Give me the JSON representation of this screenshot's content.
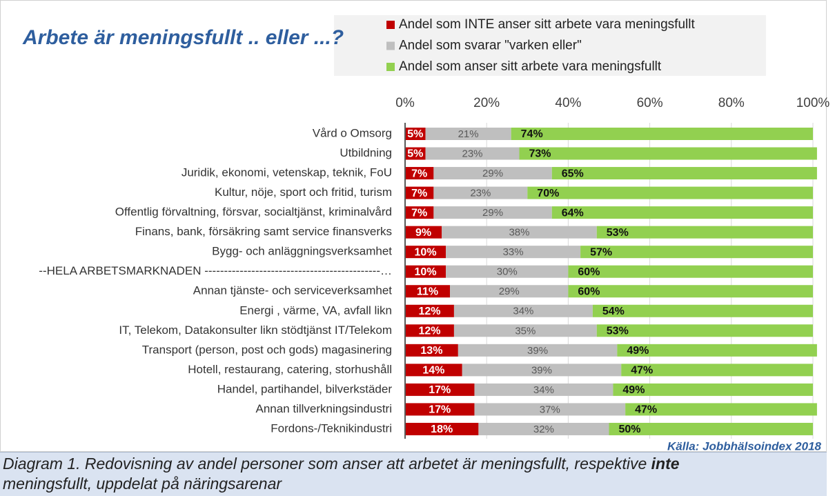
{
  "chart_data": {
    "type": "stacked_barh",
    "title": "Arbete är meningsfullt .. eller ...?",
    "source": "Källa: Jobbhälsoindex 2018",
    "categories": [
      "Vård o Omsorg",
      "Utbildning",
      "Juridik, ekonomi, vetenskap, teknik, FoU",
      "Kultur, nöje, sport och fritid, turism",
      "Offentlig förvaltning, försvar,  socialtjänst, kriminalvård",
      "Finans, bank, försäkring samt service finansverks",
      "Bygg- och anläggningsverksamhet",
      "--HELA ARBETSMARKNADEN ---------------------------------------------…",
      "Annan tjänste- och serviceverksamhet",
      "Energi , värme, VA, avfall likn",
      "IT, Telekom, Datakonsulter likn stödtjänst IT/Telekom",
      "Transport (person, post och gods) magasinering",
      "Hotell, restaurang, catering, storhushåll",
      "Handel, partihandel, bilverkstäder",
      "Annan tillverkningsindustri",
      "Fordons-/Teknikindustri"
    ],
    "series": [
      {
        "name": "Andel som INTE anser sitt arbete vara meningsfullt",
        "color": "#c00000",
        "values": [
          5,
          5,
          7,
          7,
          7,
          9,
          10,
          10,
          11,
          12,
          12,
          13,
          14,
          17,
          17,
          18
        ],
        "value_labels": [
          "5%",
          "5%",
          "7%",
          "7%",
          "7%",
          "9%",
          "10%",
          "10%",
          "11%",
          "12%",
          "12%",
          "13%",
          "14%",
          "17%",
          "17%",
          "18%"
        ]
      },
      {
        "name": "Andel som svarar \"varken eller\"",
        "color": "#bfbfbf",
        "values": [
          21,
          23,
          29,
          23,
          29,
          38,
          33,
          30,
          29,
          34,
          35,
          39,
          39,
          34,
          37,
          32
        ],
        "value_labels": [
          "21%",
          "23%",
          "29%",
          "23%",
          "29%",
          "38%",
          "33%",
          "30%",
          "29%",
          "34%",
          "35%",
          "39%",
          "39%",
          "34%",
          "37%",
          "32%"
        ]
      },
      {
        "name": "Andel som anser sitt arbete vara meningsfullt",
        "color": "#92d050",
        "values": [
          74,
          73,
          65,
          70,
          64,
          53,
          57,
          60,
          60,
          54,
          53,
          49,
          47,
          49,
          47,
          50
        ],
        "value_labels": [
          "74%",
          "73%",
          "65%",
          "70%",
          "64%",
          "53%",
          "57%",
          "60%",
          "60%",
          "54%",
          "53%",
          "49%",
          "47%",
          "49%",
          "47%",
          "50%"
        ]
      }
    ],
    "xlim": [
      0,
      100
    ],
    "xticks": [
      {
        "value": 0,
        "label": "0%"
      },
      {
        "value": 20,
        "label": "20%"
      },
      {
        "value": 40,
        "label": "40%"
      },
      {
        "value": 60,
        "label": "60%"
      },
      {
        "value": 80,
        "label": "80%"
      },
      {
        "value": 100,
        "label": "100%"
      }
    ],
    "grid": true,
    "caption": {
      "before": "Diagram 1. Redovisning av andel personer som anser att arbetet är meningsfullt, respektive ",
      "emphasis": "inte",
      "after": "meningsfullt, uppdelat på näringsarenar"
    }
  }
}
